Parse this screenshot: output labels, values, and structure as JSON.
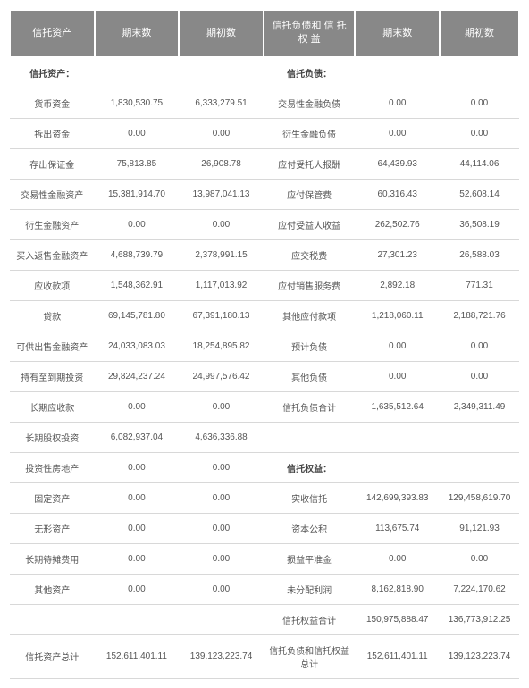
{
  "headers": {
    "c0": "信托资产",
    "c1": "期末数",
    "c2": "期初数",
    "c3": "信托负债和\n信 托 权 益",
    "c4": "期末数",
    "c5": "期初数"
  },
  "rows": [
    {
      "a": "信托资产：",
      "e1": "",
      "b1": "",
      "l": "信托负债：",
      "e2": "",
      "b2": "",
      "sec": true
    },
    {
      "a": "货币资金",
      "e1": "1,830,530.75",
      "b1": "6,333,279.51",
      "l": "交易性金融负债",
      "e2": "0.00",
      "b2": "0.00"
    },
    {
      "a": "拆出资金",
      "e1": "0.00",
      "b1": "0.00",
      "l": "衍生金融负债",
      "e2": "0.00",
      "b2": "0.00"
    },
    {
      "a": "存出保证金",
      "e1": "75,813.85",
      "b1": "26,908.78",
      "l": "应付受托人报酬",
      "e2": "64,439.93",
      "b2": "44,114.06"
    },
    {
      "a": "交易性金融资产",
      "e1": "15,381,914.70",
      "b1": "13,987,041.13",
      "l": "应付保管费",
      "e2": "60,316.43",
      "b2": "52,608.14"
    },
    {
      "a": "衍生金融资产",
      "e1": "0.00",
      "b1": "0.00",
      "l": "应付受益人收益",
      "e2": "262,502.76",
      "b2": "36,508.19"
    },
    {
      "a": "买入返售金融资产",
      "e1": "4,688,739.79",
      "b1": "2,378,991.15",
      "l": "应交税费",
      "e2": "27,301.23",
      "b2": "26,588.03"
    },
    {
      "a": "应收款项",
      "e1": "1,548,362.91",
      "b1": "1,117,013.92",
      "l": "应付销售服务费",
      "e2": "2,892.18",
      "b2": "771.31"
    },
    {
      "a": "贷款",
      "e1": "69,145,781.80",
      "b1": "67,391,180.13",
      "l": "其他应付款项",
      "e2": "1,218,060.11",
      "b2": "2,188,721.76"
    },
    {
      "a": "可供出售金融资产",
      "e1": "24,033,083.03",
      "b1": "18,254,895.82",
      "l": "预计负债",
      "e2": "0.00",
      "b2": "0.00"
    },
    {
      "a": "持有至到期投资",
      "e1": "29,824,237.24",
      "b1": "24,997,576.42",
      "l": "其他负债",
      "e2": "0.00",
      "b2": "0.00"
    },
    {
      "a": "长期应收款",
      "e1": "0.00",
      "b1": "0.00",
      "l": "信托负债合计",
      "e2": "1,635,512.64",
      "b2": "2,349,311.49"
    },
    {
      "a": "长期股权投资",
      "e1": "6,082,937.04",
      "b1": "4,636,336.88",
      "l": "",
      "e2": "",
      "b2": ""
    },
    {
      "a": "投资性房地产",
      "e1": "0.00",
      "b1": "0.00",
      "l": "信托权益：",
      "e2": "",
      "b2": "",
      "sec2": true
    },
    {
      "a": "固定资产",
      "e1": "0.00",
      "b1": "0.00",
      "l": "实收信托",
      "e2": "142,699,393.83",
      "b2": "129,458,619.70"
    },
    {
      "a": "无形资产",
      "e1": "0.00",
      "b1": "0.00",
      "l": "资本公积",
      "e2": "113,675.74",
      "b2": "91,121.93"
    },
    {
      "a": "长期待摊费用",
      "e1": "0.00",
      "b1": "0.00",
      "l": "损益平准金",
      "e2": "0.00",
      "b2": "0.00"
    },
    {
      "a": "其他资产",
      "e1": "0.00",
      "b1": "0.00",
      "l": "未分配利润",
      "e2": "8,162,818.90",
      "b2": "7,224,170.62"
    },
    {
      "a": "",
      "e1": "",
      "b1": "",
      "l": "信托权益合计",
      "e2": "150,975,888.47",
      "b2": "136,773,912.25"
    },
    {
      "a": "信托资产总计",
      "e1": "152,611,401.11",
      "b1": "139,123,223.74",
      "l": "信托负债和信托权益总计",
      "e2": "152,611,401.11",
      "b2": "139,123,223.74"
    }
  ]
}
